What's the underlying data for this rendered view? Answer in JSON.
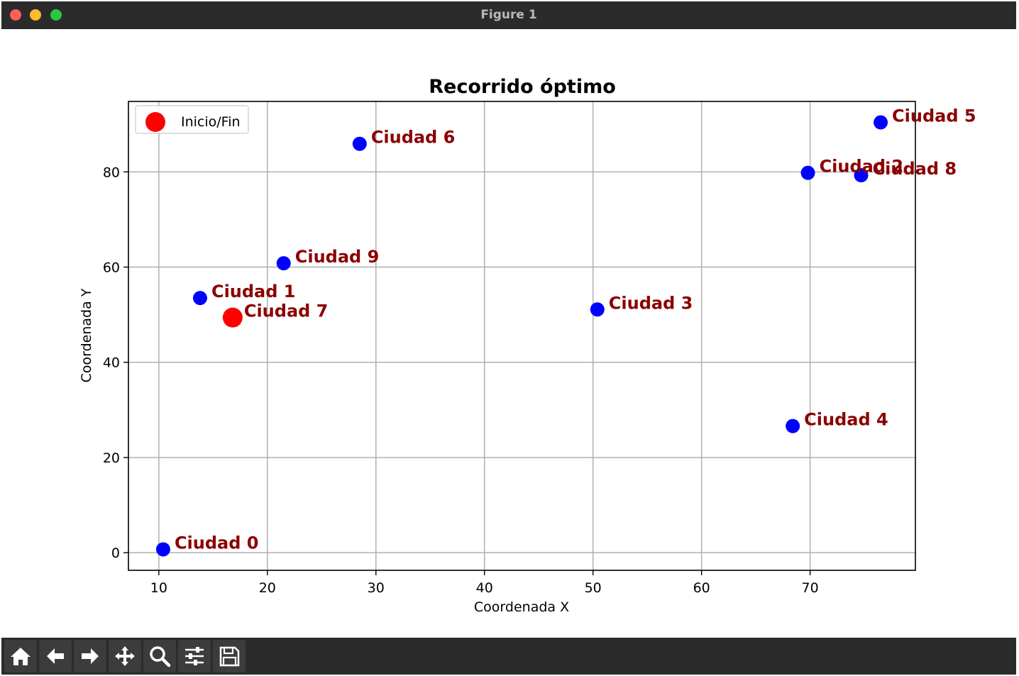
{
  "window": {
    "title": "Figure 1"
  },
  "toolbar": {
    "tools": [
      {
        "name": "home-icon"
      },
      {
        "name": "back-arrow-icon"
      },
      {
        "name": "forward-arrow-icon"
      },
      {
        "name": "pan-icon"
      },
      {
        "name": "zoom-icon"
      },
      {
        "name": "configure-subplots-icon"
      },
      {
        "name": "save-icon"
      }
    ]
  },
  "chart_data": {
    "type": "scatter",
    "title": "Recorrido óptimo",
    "xlabel": "Coordenada X",
    "ylabel": "Coordenada Y",
    "xlim": [
      7.2,
      79.7
    ],
    "ylim": [
      -3.7,
      94.8
    ],
    "xticks": [
      10,
      20,
      30,
      40,
      50,
      60,
      70
    ],
    "yticks": [
      0,
      20,
      40,
      60,
      80
    ],
    "grid": true,
    "legend": {
      "placement": "top-left",
      "entries": [
        "Inicio/Fin"
      ]
    },
    "colors": {
      "city": "#0000ff",
      "start": "#ff0000",
      "label": "#8b0000",
      "grid": "#b0b0b0"
    },
    "points": [
      {
        "label": "Ciudad 0",
        "x": 10.4,
        "y": 0.7,
        "start": false
      },
      {
        "label": "Ciudad 1",
        "x": 13.8,
        "y": 53.5,
        "start": false
      },
      {
        "label": "Ciudad 2",
        "x": 69.8,
        "y": 79.8,
        "start": false
      },
      {
        "label": "Ciudad 3",
        "x": 50.4,
        "y": 51.1,
        "start": false
      },
      {
        "label": "Ciudad 4",
        "x": 68.4,
        "y": 26.6,
        "start": false
      },
      {
        "label": "Ciudad 5",
        "x": 76.5,
        "y": 90.4,
        "start": false
      },
      {
        "label": "Ciudad 6",
        "x": 28.5,
        "y": 85.9,
        "start": false
      },
      {
        "label": "Ciudad 7",
        "x": 16.8,
        "y": 49.4,
        "start": true
      },
      {
        "label": "Ciudad 8",
        "x": 74.7,
        "y": 79.3,
        "start": false
      },
      {
        "label": "Ciudad 9",
        "x": 21.5,
        "y": 60.8,
        "start": false
      }
    ]
  }
}
